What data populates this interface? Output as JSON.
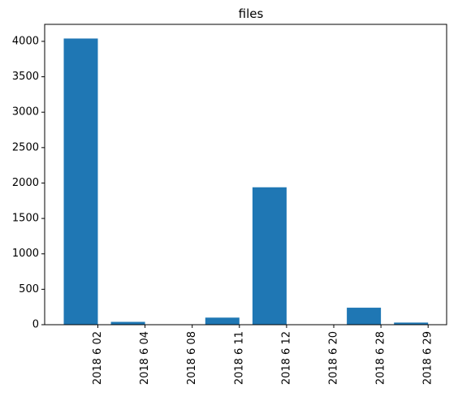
{
  "chart_data": {
    "type": "bar",
    "title": "files",
    "xlabel": "",
    "ylabel": "",
    "categories": [
      "2018 6 02",
      "2018 6 04",
      "2018 6 08",
      "2018 6 11",
      "2018 6 12",
      "2018 6 20",
      "2018 6 28",
      "2018 6 29"
    ],
    "values": [
      4040,
      40,
      0,
      100,
      1940,
      0,
      240,
      30
    ],
    "ylim": [
      0,
      4240
    ],
    "yticks": [
      0,
      500,
      1000,
      1500,
      2000,
      2500,
      3000,
      3500,
      4000
    ],
    "ytick_labels": [
      "0",
      "500",
      "1000",
      "1500",
      "2000",
      "2500",
      "3000",
      "3500",
      "4000"
    ],
    "xtick_rotation": "vertical",
    "bar_color": "#1f77b4",
    "grid": false,
    "legend": "none"
  }
}
